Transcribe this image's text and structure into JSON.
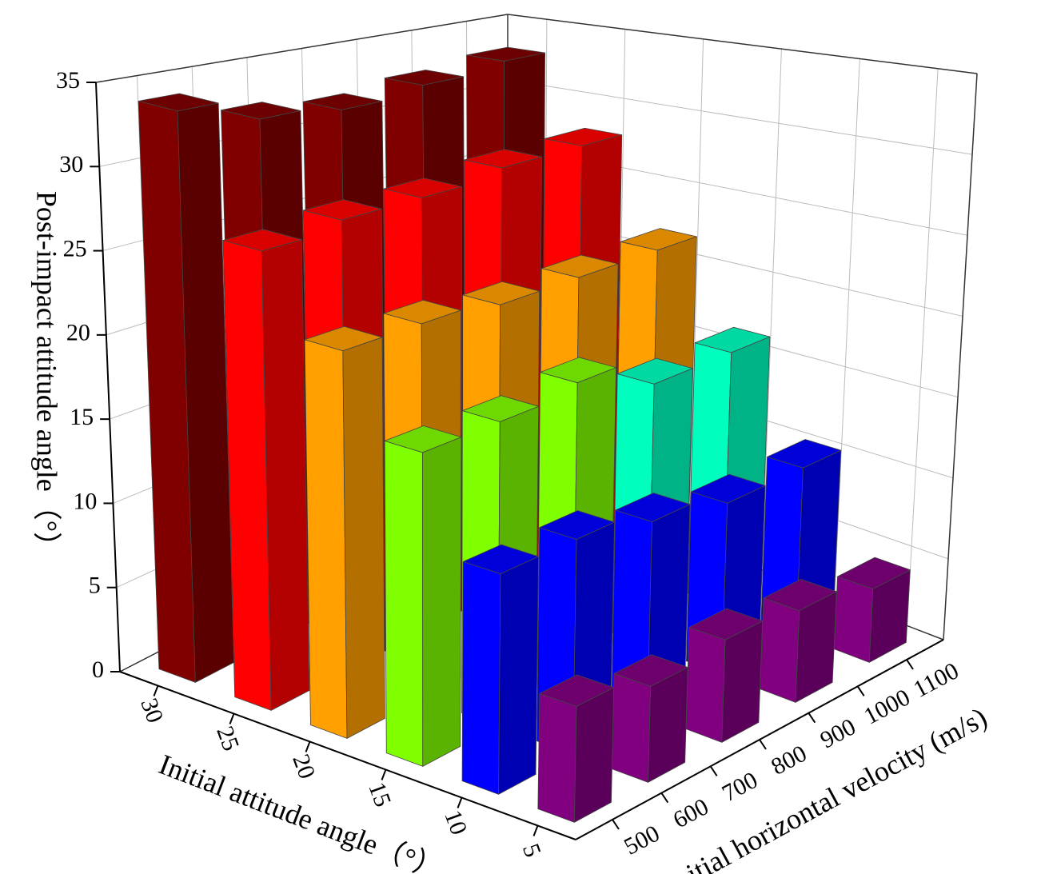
{
  "chart_data": {
    "type": "bar3d",
    "xlabel": "Initial attitude angle（°）",
    "ylabel": "Initial horizontal velocity (m/s)",
    "zlabel": "Post-impact attitude angle（°）",
    "x": [
      30,
      25,
      20,
      15,
      10,
      5
    ],
    "y": [
      500,
      650,
      800,
      950,
      1100
    ],
    "values": [
      [
        34,
        32.5,
        32,
        32.5,
        33
      ],
      [
        27,
        27.5,
        27.5,
        28,
        28
      ],
      [
        22.5,
        22.5,
        22,
        22,
        22
      ],
      [
        18,
        18,
        18.5,
        16.5,
        16.5
      ],
      [
        12.5,
        12.5,
        11.5,
        10.5,
        10.5
      ],
      [
        6.5,
        5.5,
        6,
        5.5,
        4.5
      ]
    ],
    "xlim": [
      32.5,
      2.5
    ],
    "ylim": [
      425,
      1175
    ],
    "zlim": [
      0,
      35
    ],
    "xticks": [
      30,
      25,
      20,
      15,
      10,
      5
    ],
    "yticks": [
      500,
      600,
      700,
      800,
      900,
      1000,
      1100
    ],
    "zticks": [
      0,
      5,
      10,
      15,
      20,
      25,
      30,
      35
    ],
    "colormap": {
      "levels": [
        0,
        7.5,
        15,
        17,
        20,
        25,
        30,
        35
      ],
      "colors": [
        "#800080",
        "#0000ff",
        "#00ffbf",
        "#80ff00",
        "#ffa000",
        "#ff0000",
        "#800000"
      ]
    },
    "grid": true
  }
}
